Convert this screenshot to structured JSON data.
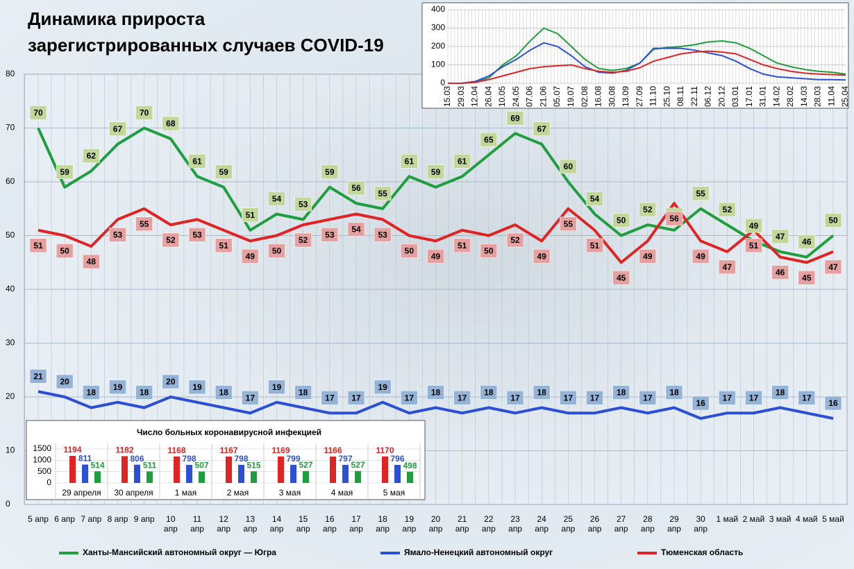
{
  "chart_data": [
    {
      "type": "line",
      "title": "Динамика прироста\nзарегистрированных случаев COVID-19",
      "categories": [
        "5 апр",
        "6 апр",
        "7 апр",
        "8 апр",
        "9 апр",
        "10\nапр",
        "11\nапр",
        "12\nапр",
        "13\nапр",
        "14\nапр",
        "15\nапр",
        "16\nапр",
        "17\nапр",
        "18\nапр",
        "19\nапр",
        "20\nапр",
        "21\nапр",
        "22\nапр",
        "23\nапр",
        "24\nапр",
        "25\nапр",
        "26\nапр",
        "27\nапр",
        "28\nапр",
        "29\nапр",
        "30\nапр",
        "1 май",
        "2 май",
        "3 май",
        "4 май",
        "5 май"
      ],
      "series": [
        {
          "name": "Ханты-Мансийский автономный округ — Югра",
          "color": "#1e9e3e",
          "label_color": "#c4d79b",
          "values": [
            70,
            59,
            62,
            67,
            70,
            68,
            61,
            59,
            51,
            54,
            53,
            59,
            56,
            55,
            61,
            59,
            61,
            65,
            69,
            67,
            60,
            54,
            50,
            52,
            51,
            55,
            52,
            49,
            47,
            46,
            50
          ]
        },
        {
          "name": "Ямало-Ненецкий автономный округ",
          "color": "#2b50d6",
          "label_color": "#95b3d7",
          "values": [
            21,
            20,
            18,
            19,
            18,
            20,
            19,
            18,
            17,
            19,
            18,
            17,
            17,
            19,
            17,
            18,
            17,
            18,
            17,
            18,
            17,
            17,
            18,
            17,
            18,
            16,
            17,
            17,
            18,
            17,
            16
          ]
        },
        {
          "name": "Тюменская область",
          "color": "#e02424",
          "label_color": "#e6a0a0",
          "values": [
            51,
            50,
            48,
            53,
            55,
            52,
            53,
            51,
            49,
            50,
            52,
            53,
            54,
            53,
            50,
            49,
            51,
            50,
            52,
            49,
            55,
            51,
            45,
            49,
            56,
            49,
            47,
            51,
            46,
            45,
            47
          ]
        }
      ],
      "ylim": [
        0,
        80
      ],
      "yticks": [
        0,
        10,
        20,
        30,
        40,
        50,
        60,
        70,
        80
      ],
      "grid": true,
      "legend": "bottom"
    },
    {
      "type": "line",
      "categories": [
        "15.03",
        "29.03",
        "12.04",
        "26.04",
        "10.05",
        "24.05",
        "07.06",
        "21.06",
        "05.07",
        "19.07",
        "02.08",
        "16.08",
        "30.08",
        "13.09",
        "27.09",
        "11.10",
        "25.10",
        "08.11",
        "22.11",
        "06.12",
        "20.12",
        "03.01",
        "17.01",
        "31.01",
        "14.02",
        "28.02",
        "14.03",
        "28.03",
        "11.04",
        "25.04"
      ],
      "series": [
        {
          "color": "#1e9e3e",
          "values": [
            0,
            0,
            5,
            30,
            100,
            150,
            230,
            300,
            270,
            200,
            130,
            80,
            70,
            80,
            110,
            185,
            195,
            200,
            210,
            225,
            230,
            220,
            190,
            150,
            110,
            90,
            75,
            65,
            60,
            50
          ]
        },
        {
          "color": "#2b50d6",
          "values": [
            0,
            0,
            10,
            40,
            90,
            130,
            180,
            220,
            200,
            150,
            90,
            60,
            55,
            70,
            110,
            190,
            190,
            190,
            180,
            165,
            150,
            120,
            80,
            50,
            35,
            30,
            25,
            20,
            20,
            18
          ]
        },
        {
          "color": "#e02424",
          "values": [
            0,
            0,
            5,
            20,
            40,
            60,
            80,
            90,
            95,
            100,
            80,
            65,
            60,
            65,
            85,
            120,
            140,
            160,
            170,
            175,
            170,
            160,
            130,
            100,
            80,
            65,
            55,
            50,
            47,
            45
          ]
        }
      ],
      "ylim": [
        0,
        400
      ],
      "yticks": [
        0,
        100,
        200,
        300,
        400
      ],
      "grid": true
    },
    {
      "type": "bar",
      "title": "Число больных коронавирусной  инфекцией",
      "categories": [
        "29 апреля",
        "30 апреля",
        "1 мая",
        "2 мая",
        "3 мая",
        "4 мая",
        "5 мая"
      ],
      "series": [
        {
          "color": "#e02424",
          "values": [
            1194,
            1182,
            1168,
            1167,
            1169,
            1166,
            1170
          ]
        },
        {
          "color": "#2b50d6",
          "values": [
            811,
            806,
            798,
            798,
            799,
            797,
            796
          ]
        },
        {
          "color": "#1e9e3e",
          "values": [
            514,
            511,
            507,
            515,
            527,
            527,
            498
          ]
        }
      ],
      "ylim": [
        0,
        1500
      ],
      "yticks": [
        0,
        500,
        1000,
        1500
      ],
      "grid": true
    }
  ]
}
